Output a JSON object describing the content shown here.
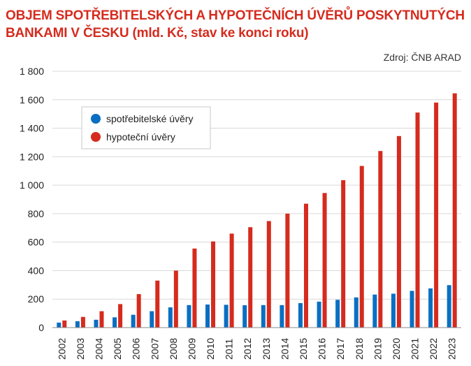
{
  "chart_data": {
    "type": "bar",
    "title_lines": [
      "OBJEM SPOTŘEBITELSKÝCH A HYPOTEČNÍCH ÚVĚRŮ POSKYTNUTÝCH",
      "BANKAMI V ČESKU (mld. Kč, stav ke konci roku)"
    ],
    "source": "Zdroj: ČNB ARAD",
    "categories": [
      "2002",
      "2003",
      "2004",
      "2005",
      "2006",
      "2007",
      "2008",
      "2009",
      "2010",
      "2011",
      "2012",
      "2013",
      "2014",
      "2015",
      "2016",
      "2017",
      "2018",
      "2019",
      "2020",
      "2021",
      "2022",
      "2023"
    ],
    "series": [
      {
        "name": "spotřebitelské úvěry",
        "color": "#0a6fc2",
        "values": [
          35,
          45,
          55,
          72,
          90,
          115,
          142,
          158,
          162,
          160,
          157,
          158,
          158,
          172,
          182,
          195,
          212,
          232,
          238,
          258,
          275,
          298
        ]
      },
      {
        "name": "hypoteční úvěry",
        "color": "#d52b1e",
        "values": [
          50,
          75,
          115,
          165,
          235,
          330,
          400,
          555,
          605,
          660,
          705,
          748,
          800,
          870,
          945,
          1035,
          1135,
          1240,
          1345,
          1510,
          1580,
          1645
        ]
      }
    ],
    "yticks": [
      "0",
      "200",
      "400",
      "600",
      "800",
      "1 000",
      "1 200",
      "1 400",
      "1 600",
      "1 800"
    ],
    "ylim": [
      0,
      1800
    ],
    "grid": true,
    "legend_position": "top-left"
  }
}
